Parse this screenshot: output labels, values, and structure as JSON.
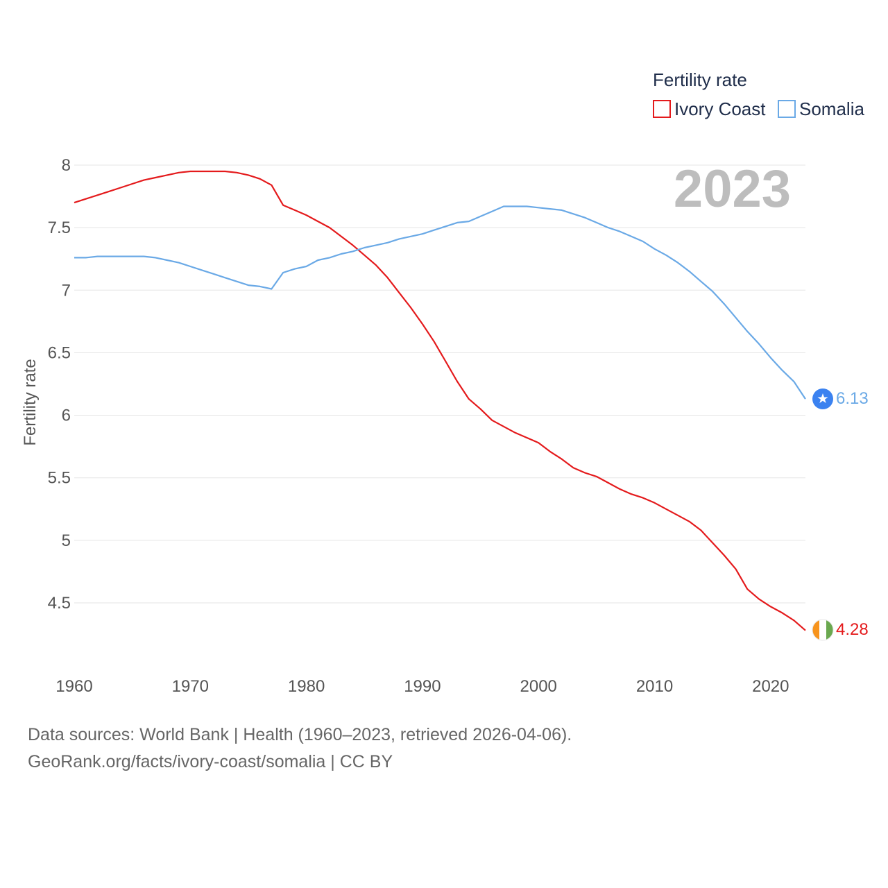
{
  "chart_data": {
    "type": "line",
    "legend_title": "Fertility rate",
    "ylabel": "Fertility rate",
    "xlabel": "",
    "year_badge": "2023",
    "xlim": [
      1960,
      2023
    ],
    "ylim": [
      4.2,
      8.1
    ],
    "x_ticks": [
      1960,
      1970,
      1980,
      1990,
      2000,
      2010,
      2020
    ],
    "y_ticks": [
      4.5,
      5,
      5.5,
      6,
      6.5,
      7,
      7.5,
      8
    ],
    "y_tick_labels": [
      "4.5",
      "5",
      "5.5",
      "6",
      "6.5",
      "7",
      "7.5",
      "8"
    ],
    "x": [
      1960,
      1961,
      1962,
      1963,
      1964,
      1965,
      1966,
      1967,
      1968,
      1969,
      1970,
      1971,
      1972,
      1973,
      1974,
      1975,
      1976,
      1977,
      1978,
      1979,
      1980,
      1981,
      1982,
      1983,
      1984,
      1985,
      1986,
      1987,
      1988,
      1989,
      1990,
      1991,
      1992,
      1993,
      1994,
      1995,
      1996,
      1997,
      1998,
      1999,
      2000,
      2001,
      2002,
      2003,
      2004,
      2005,
      2006,
      2007,
      2008,
      2009,
      2010,
      2011,
      2012,
      2013,
      2014,
      2015,
      2016,
      2017,
      2018,
      2019,
      2020,
      2021,
      2022,
      2023
    ],
    "series": [
      {
        "name": "Ivory Coast",
        "color": "#e41a1c",
        "end_label": "4.28",
        "marker": "flag-ivory-coast",
        "values": [
          7.7,
          7.73,
          7.76,
          7.79,
          7.82,
          7.85,
          7.88,
          7.9,
          7.92,
          7.94,
          7.95,
          7.95,
          7.95,
          7.95,
          7.94,
          7.92,
          7.89,
          7.84,
          7.68,
          7.64,
          7.6,
          7.55,
          7.5,
          7.43,
          7.36,
          7.28,
          7.2,
          7.1,
          6.98,
          6.86,
          6.73,
          6.59,
          6.43,
          6.27,
          6.13,
          6.05,
          5.96,
          5.91,
          5.86,
          5.82,
          5.78,
          5.71,
          5.65,
          5.58,
          5.54,
          5.51,
          5.46,
          5.41,
          5.37,
          5.34,
          5.3,
          5.25,
          5.2,
          5.15,
          5.08,
          4.98,
          4.88,
          4.77,
          4.61,
          4.53,
          4.47,
          4.42,
          4.36,
          4.28
        ]
      },
      {
        "name": "Somalia",
        "color": "#6aa9e6",
        "end_label": "6.13",
        "marker": "flag-somalia",
        "values": [
          7.26,
          7.26,
          7.27,
          7.27,
          7.27,
          7.27,
          7.27,
          7.26,
          7.24,
          7.22,
          7.19,
          7.16,
          7.13,
          7.1,
          7.07,
          7.04,
          7.03,
          7.01,
          7.14,
          7.17,
          7.19,
          7.24,
          7.26,
          7.29,
          7.31,
          7.34,
          7.36,
          7.38,
          7.41,
          7.43,
          7.45,
          7.48,
          7.51,
          7.54,
          7.55,
          7.59,
          7.63,
          7.67,
          7.67,
          7.67,
          7.66,
          7.65,
          7.64,
          7.61,
          7.58,
          7.54,
          7.5,
          7.47,
          7.43,
          7.39,
          7.33,
          7.28,
          7.22,
          7.15,
          7.07,
          6.99,
          6.89,
          6.78,
          6.67,
          6.57,
          6.46,
          6.36,
          6.27,
          6.13
        ]
      }
    ]
  },
  "source": {
    "line1": "Data sources: World Bank | Health (1960–2023, retrieved 2026-04-06).",
    "line2": "GeoRank.org/facts/ivory-coast/somalia | CC BY"
  }
}
